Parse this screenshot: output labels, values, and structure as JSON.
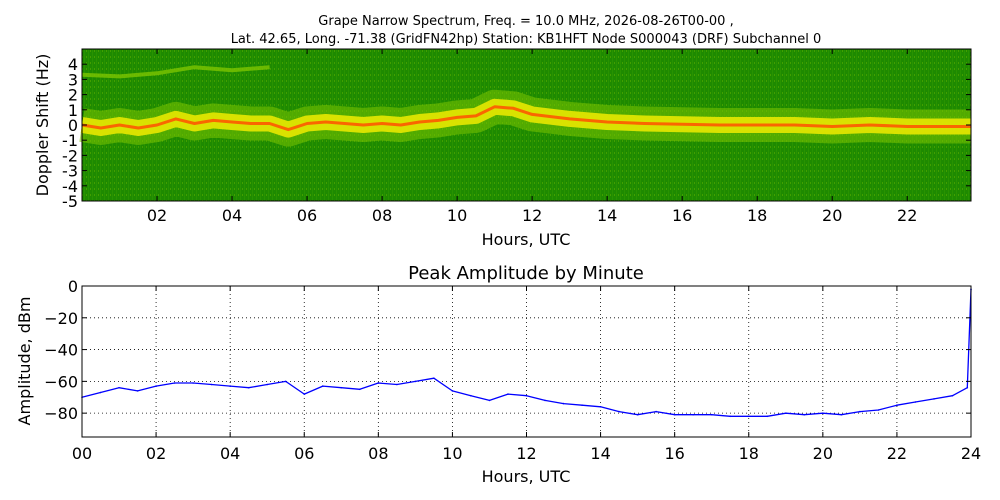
{
  "figure": {
    "title_line1": "Grape Narrow Spectrum, Freq. = 10.0 MHz, 2026-08-26T00-00 ,",
    "title_line2": "Lat.  42.65, Long. -71.38 (GridFN42hp) Station: KB1HFT Node S000043 (DRF) Subchannel 0"
  },
  "chart_data": [
    {
      "type": "heatmap",
      "title": "",
      "xlabel": "Hours, UTC",
      "ylabel": "Doppler Shift (Hz)",
      "xlim": [
        0,
        23.7
      ],
      "ylim": [
        -5,
        5
      ],
      "xticks": [
        2,
        4,
        6,
        8,
        10,
        12,
        14,
        16,
        18,
        20,
        22
      ],
      "xtick_labels": [
        "02",
        "04",
        "06",
        "08",
        "10",
        "12",
        "14",
        "16",
        "18",
        "20",
        "22"
      ],
      "yticks": [
        4,
        3,
        2,
        1,
        0,
        -1,
        -2,
        -3,
        -4,
        -5
      ],
      "ytick_labels": [
        "4",
        "3",
        "2",
        "1",
        "0",
        "-1",
        "-2",
        "-3",
        "-4",
        "-5"
      ],
      "colors": {
        "background": "#1e8a00",
        "mid": "#7cc400",
        "band": "#e8e800",
        "peak": "#ff5000"
      },
      "doppler_trace": {
        "hours": [
          0,
          0.5,
          1,
          1.5,
          2,
          2.5,
          3,
          3.5,
          4,
          4.5,
          5,
          5.5,
          6,
          6.5,
          7,
          7.5,
          8,
          8.5,
          9,
          9.5,
          10,
          10.5,
          11,
          11.5,
          12,
          13,
          14,
          15,
          16,
          17,
          18,
          19,
          20,
          21,
          22,
          23,
          23.7
        ],
        "hz": [
          0,
          -0.2,
          0,
          -0.2,
          0,
          0.4,
          0.1,
          0.3,
          0.2,
          0.1,
          0.1,
          -0.3,
          0.1,
          0.2,
          0.1,
          0,
          0.1,
          0,
          0.2,
          0.3,
          0.5,
          0.6,
          1.2,
          1.1,
          0.7,
          0.4,
          0.2,
          0.1,
          0.05,
          0,
          0,
          0,
          -0.1,
          0,
          -0.1,
          -0.1,
          -0.1
        ]
      },
      "secondary_trace": {
        "hours": [
          0,
          1,
          2,
          3,
          4,
          5
        ],
        "hz": [
          3.3,
          3.2,
          3.4,
          3.8,
          3.6,
          3.8
        ]
      }
    },
    {
      "type": "line",
      "title": "Peak Amplitude by Minute",
      "xlabel": "Hours, UTC",
      "ylabel": "Amplitude, dBm",
      "xlim": [
        0,
        24
      ],
      "ylim": [
        -95,
        0
      ],
      "grid": true,
      "xticks": [
        0,
        2,
        4,
        6,
        8,
        10,
        12,
        14,
        16,
        18,
        20,
        22,
        24
      ],
      "xtick_labels": [
        "00",
        "02",
        "04",
        "06",
        "08",
        "10",
        "12",
        "14",
        "16",
        "18",
        "20",
        "22",
        "24"
      ],
      "yticks": [
        0,
        -20,
        -40,
        -60,
        -80
      ],
      "ytick_labels": [
        "0",
        "−20",
        "−40",
        "−60",
        "−80"
      ],
      "color": "#0000ff",
      "series": [
        {
          "x": [
            0,
            0.5,
            1,
            1.5,
            2,
            2.5,
            3,
            3.5,
            4,
            4.5,
            5,
            5.5,
            6,
            6.5,
            7,
            7.5,
            8,
            8.5,
            9,
            9.5,
            10,
            10.5,
            11,
            11.5,
            12,
            12.5,
            13,
            13.5,
            14,
            14.5,
            15,
            15.5,
            16,
            16.5,
            17,
            17.5,
            18,
            18.5,
            19,
            19.5,
            20,
            20.5,
            21,
            21.5,
            22,
            22.5,
            23,
            23.5,
            23.9,
            24
          ],
          "y": [
            -70,
            -67,
            -64,
            -66,
            -63,
            -61,
            -61,
            -62,
            -63,
            -64,
            -62,
            -60,
            -68,
            -63,
            -64,
            -65,
            -61,
            -62,
            -60,
            -58,
            -66,
            -69,
            -72,
            -68,
            -69,
            -72,
            -74,
            -75,
            -76,
            -79,
            -81,
            -79,
            -81,
            -81,
            -81,
            -82,
            -82,
            -82,
            -80,
            -81,
            -80,
            -81,
            -79,
            -78,
            -75,
            -73,
            -71,
            -69,
            -64,
            -2
          ]
        }
      ]
    }
  ]
}
